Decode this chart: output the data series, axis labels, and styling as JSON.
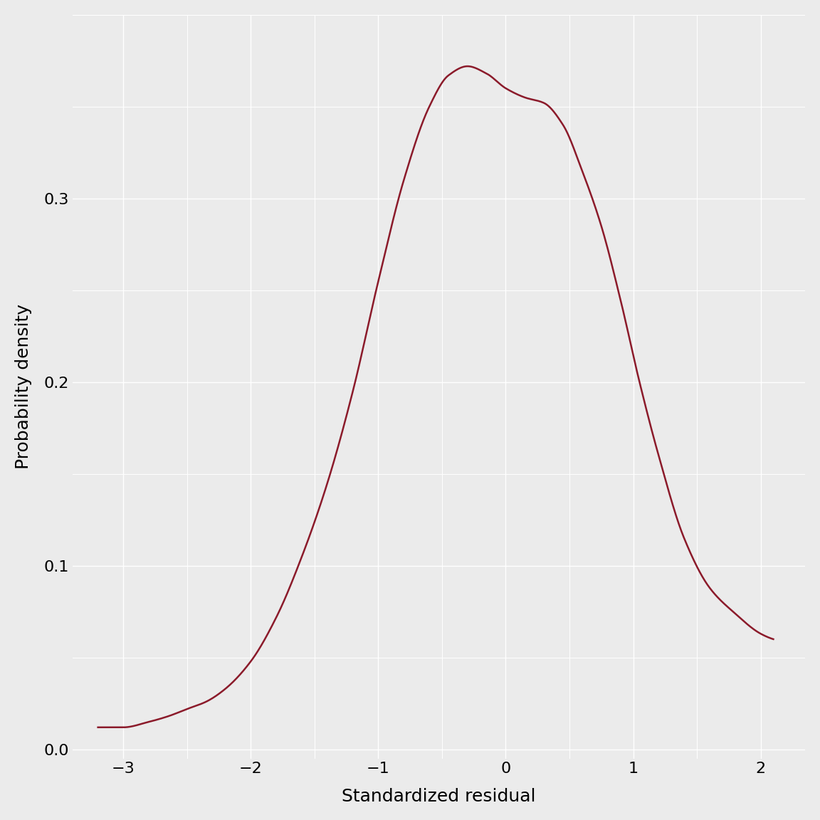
{
  "xlabel": "Standardized residual",
  "ylabel": "Probability density",
  "line_color": "#8B1A2A",
  "background_color": "#EBEBEB",
  "grid_color": "#FFFFFF",
  "xlim": [
    -3.4,
    2.35
  ],
  "ylim": [
    -0.005,
    0.4
  ],
  "xticks": [
    -3,
    -2,
    -1,
    0,
    1,
    2
  ],
  "yticks": [
    0.0,
    0.1,
    0.2,
    0.3
  ],
  "xlabel_fontsize": 18,
  "ylabel_fontsize": 18,
  "tick_fontsize": 16,
  "line_width": 1.8,
  "curve_x": [
    -3.2,
    -3.0,
    -2.8,
    -2.65,
    -2.5,
    -2.35,
    -2.2,
    -2.0,
    -1.8,
    -1.6,
    -1.4,
    -1.2,
    -1.0,
    -0.8,
    -0.6,
    -0.45,
    -0.3,
    -0.15,
    0.0,
    0.15,
    0.3,
    0.45,
    0.6,
    0.75,
    0.9,
    1.05,
    1.2,
    1.4,
    1.6,
    1.8,
    2.0,
    2.1
  ],
  "curve_y": [
    0.012,
    0.012,
    0.015,
    0.018,
    0.022,
    0.026,
    0.033,
    0.048,
    0.072,
    0.105,
    0.145,
    0.195,
    0.255,
    0.31,
    0.35,
    0.367,
    0.372,
    0.368,
    0.36,
    0.355,
    0.352,
    0.34,
    0.315,
    0.285,
    0.245,
    0.2,
    0.16,
    0.115,
    0.088,
    0.074,
    0.063,
    0.06
  ]
}
